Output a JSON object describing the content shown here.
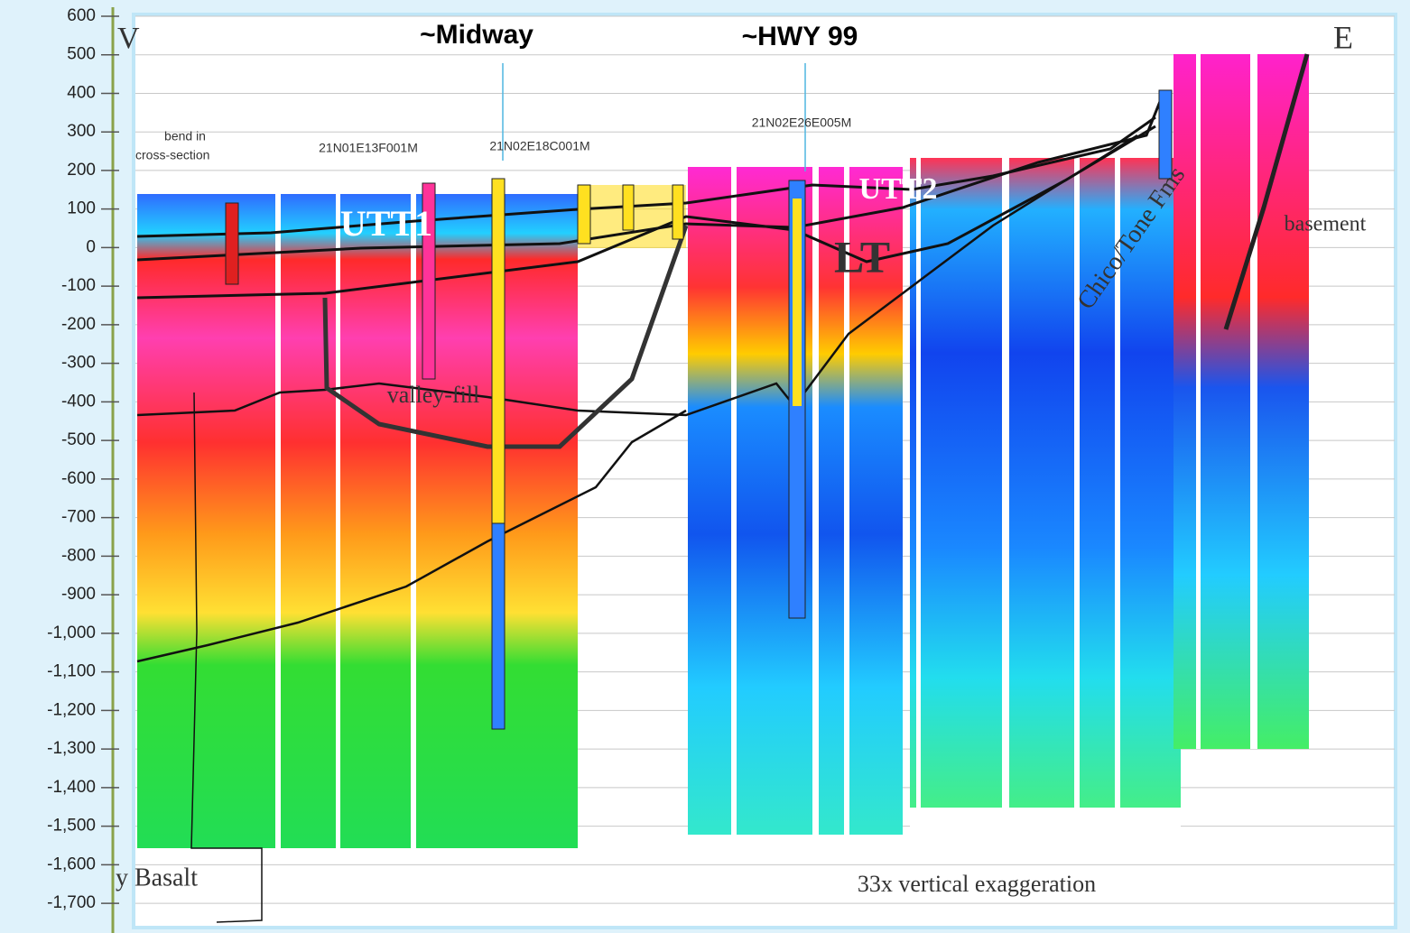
{
  "chart_data": {
    "type": "cross-section",
    "ylim": [
      -1777,
      642
    ],
    "yticks": [
      600,
      500,
      400,
      300,
      200,
      100,
      0,
      -100,
      -200,
      -300,
      -400,
      -500,
      -600,
      -700,
      -800,
      -900,
      {
        "value": -1000,
        "label": "-1,000"
      },
      {
        "value": -1100,
        "label": "-1,100"
      },
      {
        "value": -1200,
        "label": "-1,200"
      },
      {
        "value": -1300,
        "label": "-1,300"
      },
      {
        "value": -1400,
        "label": "-1,400"
      },
      {
        "value": -1500,
        "label": "-1,500"
      },
      {
        "value": -1600,
        "label": "-1,600"
      },
      {
        "value": -1700,
        "label": "-1,700"
      }
    ],
    "grid": true,
    "annotations": [
      "~Midway",
      "~HWY 99",
      "21N01E13F001M",
      "21N02E18C001M",
      "21N02E26E005M",
      "bend in",
      "cross-section",
      "UTT1",
      "UTT2",
      "LT",
      "valley-fill",
      "Chico/Tone Fms",
      "basement",
      "33x vertical exaggeration",
      "y Basalt",
      "V",
      "E"
    ]
  }
}
